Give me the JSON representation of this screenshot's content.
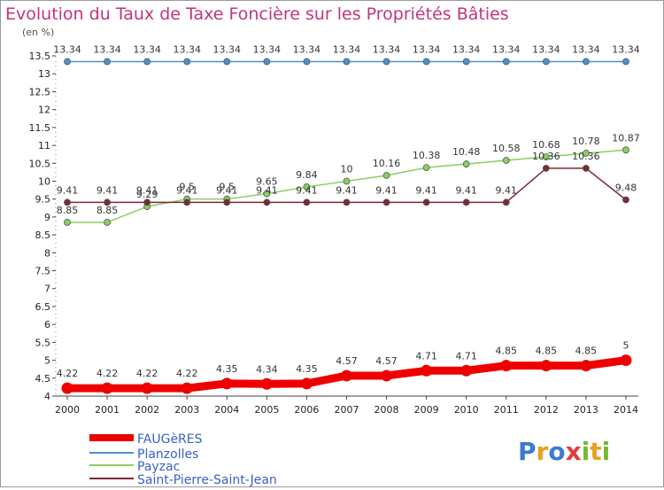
{
  "header": {
    "title": "Evolution du Taux de Taxe Foncière sur les Propriétés Bâties",
    "subtitle": "(en %)"
  },
  "brand": {
    "letters": [
      "P",
      "r",
      "o",
      "x",
      "i",
      "t",
      "i"
    ]
  },
  "chart_data": {
    "type": "line",
    "title": "Evolution du Taux de Taxe Foncière sur les Propriétés Bâties",
    "ylabel": "(en %)",
    "xlabel": "",
    "ylim": [
      4,
      13.5
    ],
    "grid": false,
    "legend_position": "bottom-left",
    "categories": [
      "2000",
      "2001",
      "2002",
      "2003",
      "2004",
      "2005",
      "2006",
      "2007",
      "2008",
      "2009",
      "2010",
      "2011",
      "2012",
      "2013",
      "2014"
    ],
    "yticks": [
      "4",
      "4.5",
      "5",
      "5.5",
      "6",
      "6.5",
      "7",
      "7.5",
      "8",
      "8.5",
      "9",
      "9.5",
      "10",
      "10.5",
      "11",
      "11.5",
      "12",
      "12.5",
      "13",
      "13.5"
    ],
    "series": [
      {
        "name": "FAUGèRES",
        "color": "#ee0000",
        "values": [
          4.22,
          4.22,
          4.22,
          4.22,
          4.35,
          4.34,
          4.35,
          4.57,
          4.57,
          4.71,
          4.71,
          4.85,
          4.85,
          4.85,
          5
        ],
        "labels": [
          "4.22",
          "4.22",
          "4.22",
          "4.22",
          "4.35",
          "4.34",
          "4.35",
          "4.57",
          "4.57",
          "4.71",
          "4.71",
          "4.85",
          "4.85",
          "4.85",
          "5"
        ]
      },
      {
        "name": "Planzolles",
        "color": "#4f8fcf",
        "values": [
          13.34,
          13.34,
          13.34,
          13.34,
          13.34,
          13.34,
          13.34,
          13.34,
          13.34,
          13.34,
          13.34,
          13.34,
          13.34,
          13.34,
          13.34
        ],
        "labels": [
          "13.34",
          "13.34",
          "13.34",
          "13.34",
          "13.34",
          "13.34",
          "13.34",
          "13.34",
          "13.34",
          "13.34",
          "13.34",
          "13.34",
          "13.34",
          "13.34",
          "13.34"
        ]
      },
      {
        "name": "Payzac",
        "color": "#88d060",
        "values": [
          8.85,
          8.85,
          9.29,
          9.5,
          9.5,
          9.65,
          9.84,
          10,
          10.16,
          10.38,
          10.48,
          10.58,
          10.68,
          10.78,
          10.87
        ],
        "labels": [
          "8.85",
          "8.85",
          "9.29",
          "9.5",
          "9.5",
          "9.65",
          "9.84",
          "10",
          "10.16",
          "10.38",
          "10.48",
          "10.58",
          "10.68",
          "10.78",
          "10.87"
        ]
      },
      {
        "name": "Saint-Pierre-Saint-Jean",
        "color": "#7a2a32",
        "values": [
          9.41,
          9.41,
          9.41,
          9.41,
          9.41,
          9.41,
          9.41,
          9.41,
          9.41,
          9.41,
          9.41,
          9.41,
          10.36,
          10.36,
          9.48
        ],
        "labels": [
          "9.41",
          "9.41",
          "9.41",
          "9.41",
          "9.41",
          "9.41",
          "9.41",
          "9.41",
          "9.41",
          "9.41",
          "9.41",
          "9.41",
          "10.36",
          "10.36",
          "9.48"
        ]
      }
    ]
  }
}
